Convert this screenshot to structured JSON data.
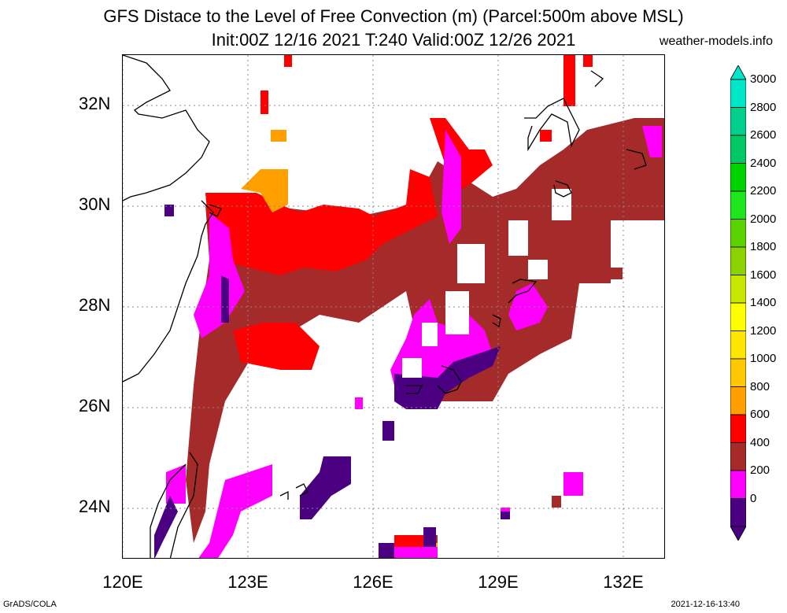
{
  "header": {
    "title_line1": "GFS Distace to the Level of Free Convection (m) (Parcel:500m above MSL)",
    "title_line2": "Init:00Z 12/16 2021 T:240 Valid:00Z 12/26 2021",
    "site": "weather-models.info"
  },
  "map": {
    "lat_labels": [
      "32N",
      "30N",
      "28N",
      "26N",
      "24N"
    ],
    "lon_labels": [
      "120E",
      "123E",
      "126E",
      "129E",
      "132E"
    ]
  },
  "colorbar": {
    "labels": [
      "3000",
      "2800",
      "2600",
      "2400",
      "2200",
      "2000",
      "1800",
      "1600",
      "1400",
      "1200",
      "1000",
      "800",
      "600",
      "400",
      "200",
      "0"
    ],
    "colors": [
      "#00e6c8",
      "#00d08c",
      "#00c864",
      "#00d200",
      "#1ee61e",
      "#5ad200",
      "#8cd200",
      "#c8e600",
      "#ffff00",
      "#ffe600",
      "#ffc800",
      "#ffa000",
      "#ff0000",
      "#a52a2a",
      "#ff00ff",
      "#4b0082"
    ]
  },
  "footer": {
    "left": "GrADS/COLA",
    "right": "2021-12-16-13:40"
  }
}
